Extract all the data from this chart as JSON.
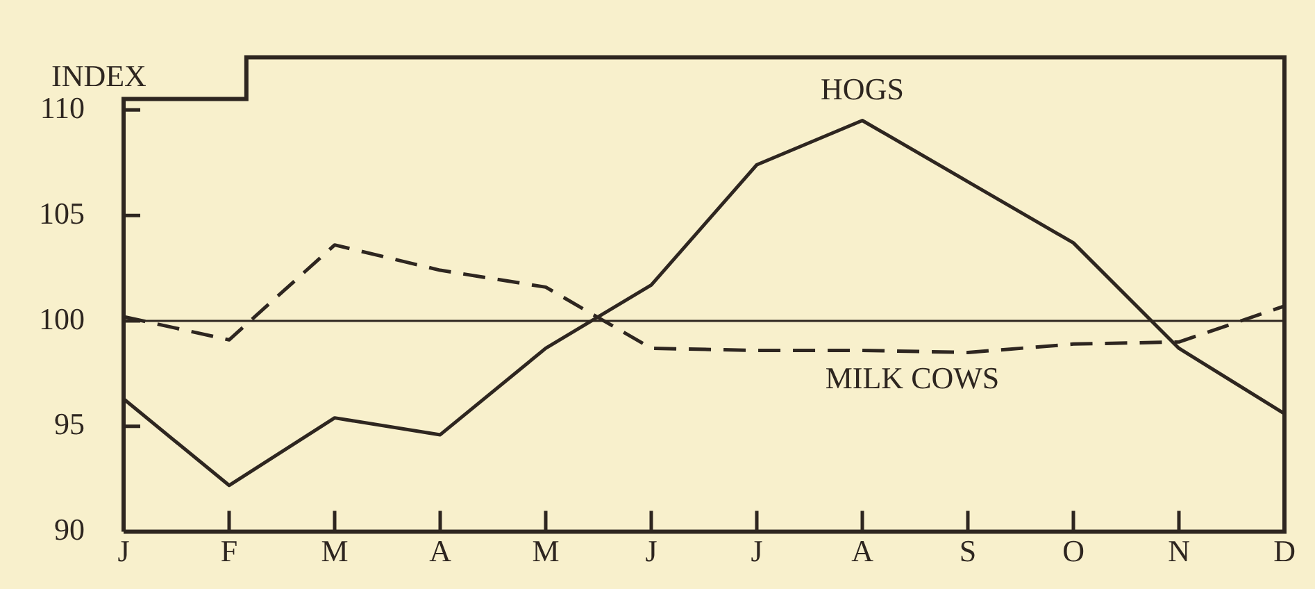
{
  "chart_data": {
    "type": "line",
    "ylabel": "INDEX",
    "categories": [
      "J",
      "F",
      "M",
      "A",
      "M",
      "J",
      "J",
      "A",
      "S",
      "O",
      "N",
      "D"
    ],
    "series": [
      {
        "name": "HOGS",
        "color": "#2e2620",
        "line_style": "solid",
        "values": [
          96.3,
          92.2,
          95.4,
          94.6,
          98.7,
          101.7,
          107.4,
          109.5,
          106.6,
          103.7,
          98.7,
          95.6
        ]
      },
      {
        "name": "MILK COWS",
        "color": "#2e2620",
        "line_style": "dashed",
        "values": [
          100.2,
          99.1,
          103.6,
          102.4,
          101.6,
          98.7,
          98.6,
          98.6,
          98.5,
          98.9,
          99.0,
          100.7
        ]
      }
    ],
    "ylim": [
      90,
      112.5
    ],
    "yticks": [
      90,
      95,
      100,
      105,
      110
    ],
    "ref_lines": [
      {
        "axis": "y",
        "value": 100,
        "color": "#2e2620"
      }
    ],
    "grid": false,
    "legend": false,
    "marker": "none"
  }
}
